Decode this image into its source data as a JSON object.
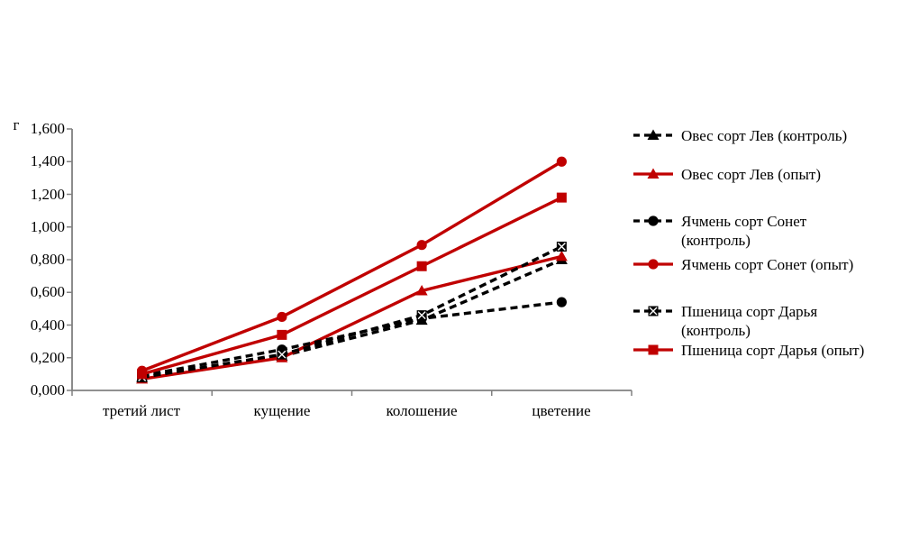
{
  "page": {
    "background": "#ffffff"
  },
  "chart_data": {
    "type": "line",
    "title": "",
    "unit_label": "г",
    "categories": [
      "третий лист",
      "кущение",
      "колошение",
      "цветение"
    ],
    "y_axis": {
      "min": 0.0,
      "max": 1.6,
      "step": 0.2,
      "tick_labels": [
        "0,000",
        "0,200",
        "0,400",
        "0,600",
        "0,800",
        "1,000",
        "1,200",
        "1,400",
        "1,600"
      ]
    },
    "grid": "off",
    "legend_position": "right",
    "colors": {
      "experiment": "#c00000",
      "control": "#000000",
      "axis": "#808080"
    },
    "series": [
      {
        "name": "Овес сорт Лев (контроль)",
        "color": "#000000",
        "dash": true,
        "marker": "triangle",
        "values": [
          0.08,
          0.21,
          0.43,
          0.8
        ]
      },
      {
        "name": "Овес сорт Лев (опыт)",
        "color": "#c00000",
        "dash": false,
        "marker": "triangle",
        "values": [
          0.07,
          0.2,
          0.61,
          0.82
        ]
      },
      {
        "name": "Ячмень сорт Сонет (контроль)",
        "color": "#000000",
        "dash": true,
        "marker": "circle",
        "values": [
          0.09,
          0.25,
          0.44,
          0.54
        ]
      },
      {
        "name": "Ячмень сорт Сонет (опыт)",
        "color": "#c00000",
        "dash": false,
        "marker": "circle",
        "values": [
          0.12,
          0.45,
          0.89,
          1.4
        ]
      },
      {
        "name": "Пшеница сорт Дарья (контроль)",
        "color": "#000000",
        "dash": true,
        "marker": "x-square",
        "values": [
          0.08,
          0.22,
          0.46,
          0.88
        ]
      },
      {
        "name": "Пшеница сорт Дарья (опыт)",
        "color": "#c00000",
        "dash": false,
        "marker": "square",
        "values": [
          0.1,
          0.34,
          0.76,
          1.18
        ]
      }
    ],
    "legend": [
      {
        "line1": "Овес сорт Лев (контроль)",
        "line2": ""
      },
      {
        "line1": "Овес сорт Лев (опыт)",
        "line2": ""
      },
      {
        "line1": "Ячмень сорт Сонет",
        "line2": "(контроль)"
      },
      {
        "line1": "Ячмень сорт Сонет (опыт)",
        "line2": ""
      },
      {
        "line1": "Пшеница сорт Дарья",
        "line2": "(контроль)"
      },
      {
        "line1": "Пшеница сорт Дарья (опыт)",
        "line2": ""
      }
    ]
  }
}
